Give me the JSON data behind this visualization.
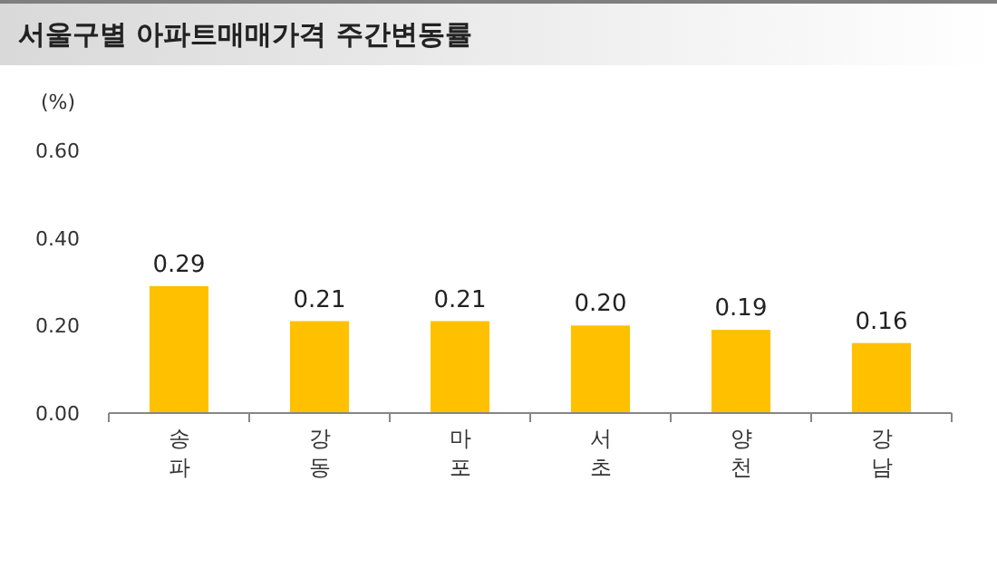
{
  "chart_data": {
    "type": "bar",
    "title": "서울구별 아파트매매가격 주간변동률",
    "ylabel": "(%)",
    "categories": [
      "송파",
      "강동",
      "마포",
      "서초",
      "양천",
      "강남"
    ],
    "values": [
      0.29,
      0.21,
      0.21,
      0.2,
      0.19,
      0.16
    ],
    "color": "#ffc000",
    "ylim": [
      0,
      0.6
    ],
    "yticks": [
      {
        "value": 0,
        "label": "0.00"
      },
      {
        "value": 0.2,
        "label": "0.20"
      },
      {
        "value": 0.4,
        "label": "0.40"
      },
      {
        "value": 0.6,
        "label": "0.60"
      }
    ],
    "value_labels": [
      "0.29",
      "0.21",
      "0.21",
      "0.20",
      "0.19",
      "0.16"
    ]
  }
}
